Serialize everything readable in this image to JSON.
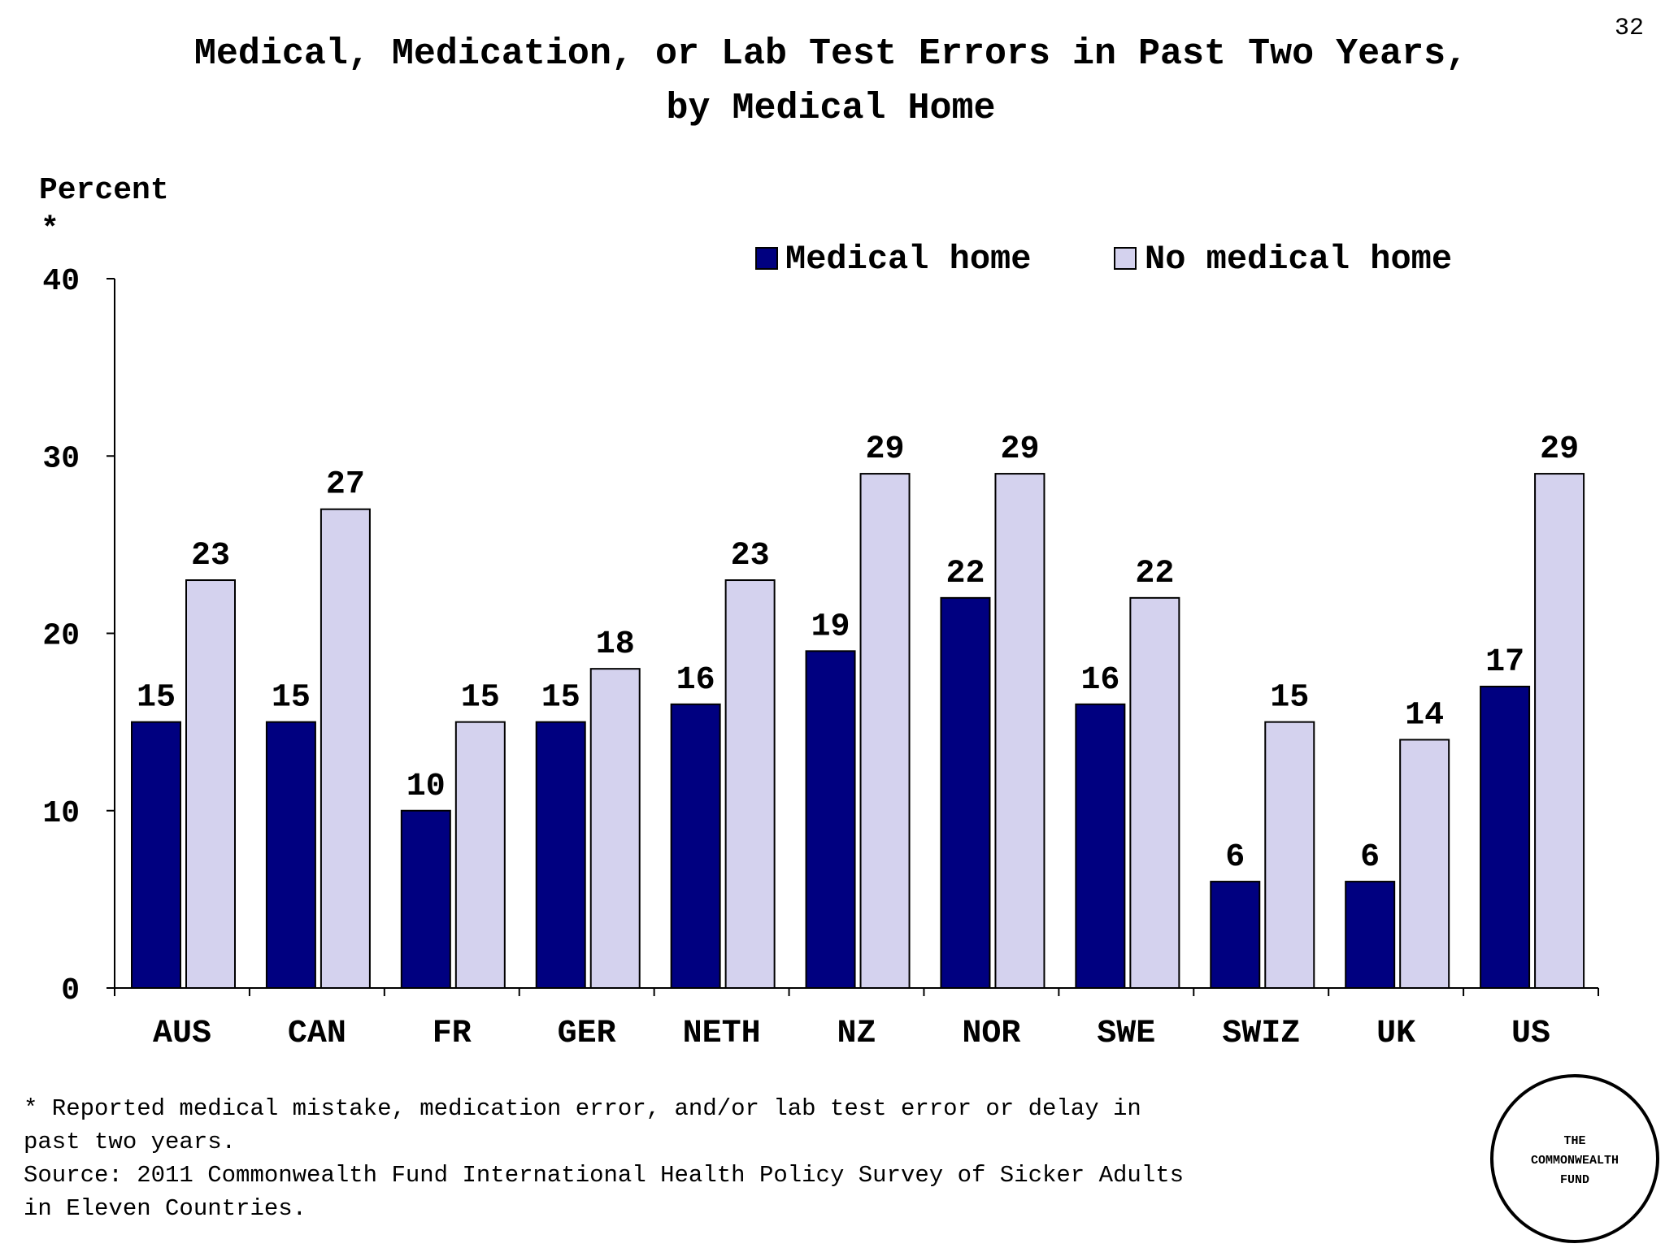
{
  "page_number": "32",
  "footnote": [
    "* Reported medical mistake, medication error, and/or lab test error or delay in",
    "past two years.",
    "Source: 2011 Commonwealth Fund International Health Policy Survey of Sicker Adults",
    "in Eleven Countries."
  ],
  "logo_text": [
    "THE",
    "COMMONWEALTH",
    "FUND"
  ],
  "chart_data": {
    "type": "bar",
    "title": [
      "Medical, Medication, or Lab Test Errors in Past Two Years,",
      "by Medical Home"
    ],
    "ylabel": "Percent",
    "ylabel_note": "*",
    "ylim": [
      0,
      40
    ],
    "yticks": [
      0,
      10,
      20,
      30,
      40
    ],
    "grid": false,
    "legend_position": "top-right",
    "categories": [
      "AUS",
      "CAN",
      "FR",
      "GER",
      "NETH",
      "NZ",
      "NOR",
      "SWE",
      "SWIZ",
      "UK",
      "US"
    ],
    "series": [
      {
        "name": "Medical home",
        "color": "#000080",
        "values": [
          15,
          15,
          10,
          15,
          16,
          19,
          22,
          16,
          6,
          6,
          17
        ]
      },
      {
        "name": "No medical home",
        "color": "#D4D2EE",
        "values": [
          23,
          27,
          15,
          18,
          23,
          29,
          29,
          22,
          15,
          14,
          29
        ]
      }
    ]
  }
}
